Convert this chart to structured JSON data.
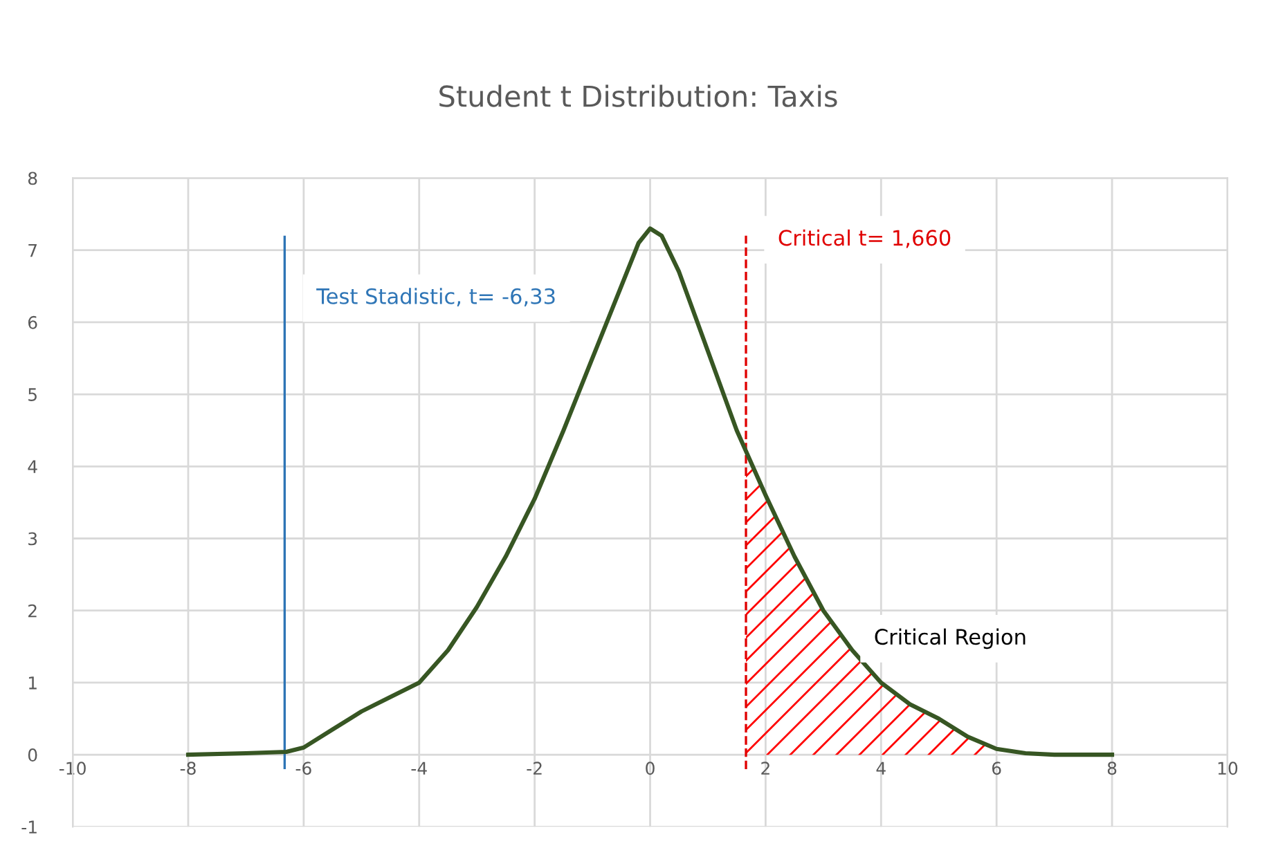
{
  "chart_data": {
    "type": "line",
    "title": "Student t Distribution: Taxis",
    "x": [
      -8,
      -7,
      -6.3,
      -6,
      -5.5,
      -5,
      -4.5,
      -4,
      -3.5,
      -3,
      -2.5,
      -2,
      -1.5,
      -1,
      -0.5,
      -0.2,
      0,
      0.2,
      0.5,
      1,
      1.5,
      2,
      2.5,
      3,
      3.5,
      4,
      4.5,
      5,
      5.5,
      6,
      6.5,
      7,
      8
    ],
    "series": [
      {
        "color": "#375623",
        "values": [
          0,
          0.02,
          0.04,
          0.1,
          0.35,
          0.6,
          0.8,
          1.0,
          1.45,
          2.05,
          2.75,
          3.55,
          4.5,
          5.5,
          6.5,
          7.1,
          7.3,
          7.2,
          6.7,
          5.6,
          4.5,
          3.6,
          2.75,
          2.0,
          1.45,
          1.0,
          0.7,
          0.5,
          0.25,
          0.08,
          0.02,
          0,
          0
        ]
      },
      {
        "type": "area",
        "color": "#ff0000",
        "x": [
          1.66,
          2,
          2.5,
          3,
          3.5,
          4,
          4.5,
          5,
          5.5,
          6
        ],
        "values": [
          4.2,
          3.6,
          2.75,
          2.0,
          1.45,
          1.0,
          0.7,
          0.5,
          0.25,
          0.08
        ]
      }
    ],
    "xlim": [
      -10,
      10
    ],
    "xticks": [
      -10,
      -8,
      -6,
      -4,
      -2,
      0,
      2,
      4,
      6,
      8,
      10
    ],
    "ylim": [
      -1,
      8
    ],
    "yticks": [
      -1,
      0,
      1,
      2,
      3,
      4,
      5,
      6,
      7,
      8
    ],
    "grid": true,
    "marker": "none",
    "line_style": "solid",
    "ref_lines": [
      {
        "axis": "x",
        "value": -6.33,
        "label": "Test Stadistic, t= -6,33",
        "color": "#2e75b6",
        "line_style": "solid"
      },
      {
        "axis": "x",
        "value": 1.66,
        "label": "Critical t= 1,660",
        "color": "#e00000",
        "line_style": "dashed"
      }
    ],
    "annotations": [
      "Critical Region"
    ]
  }
}
